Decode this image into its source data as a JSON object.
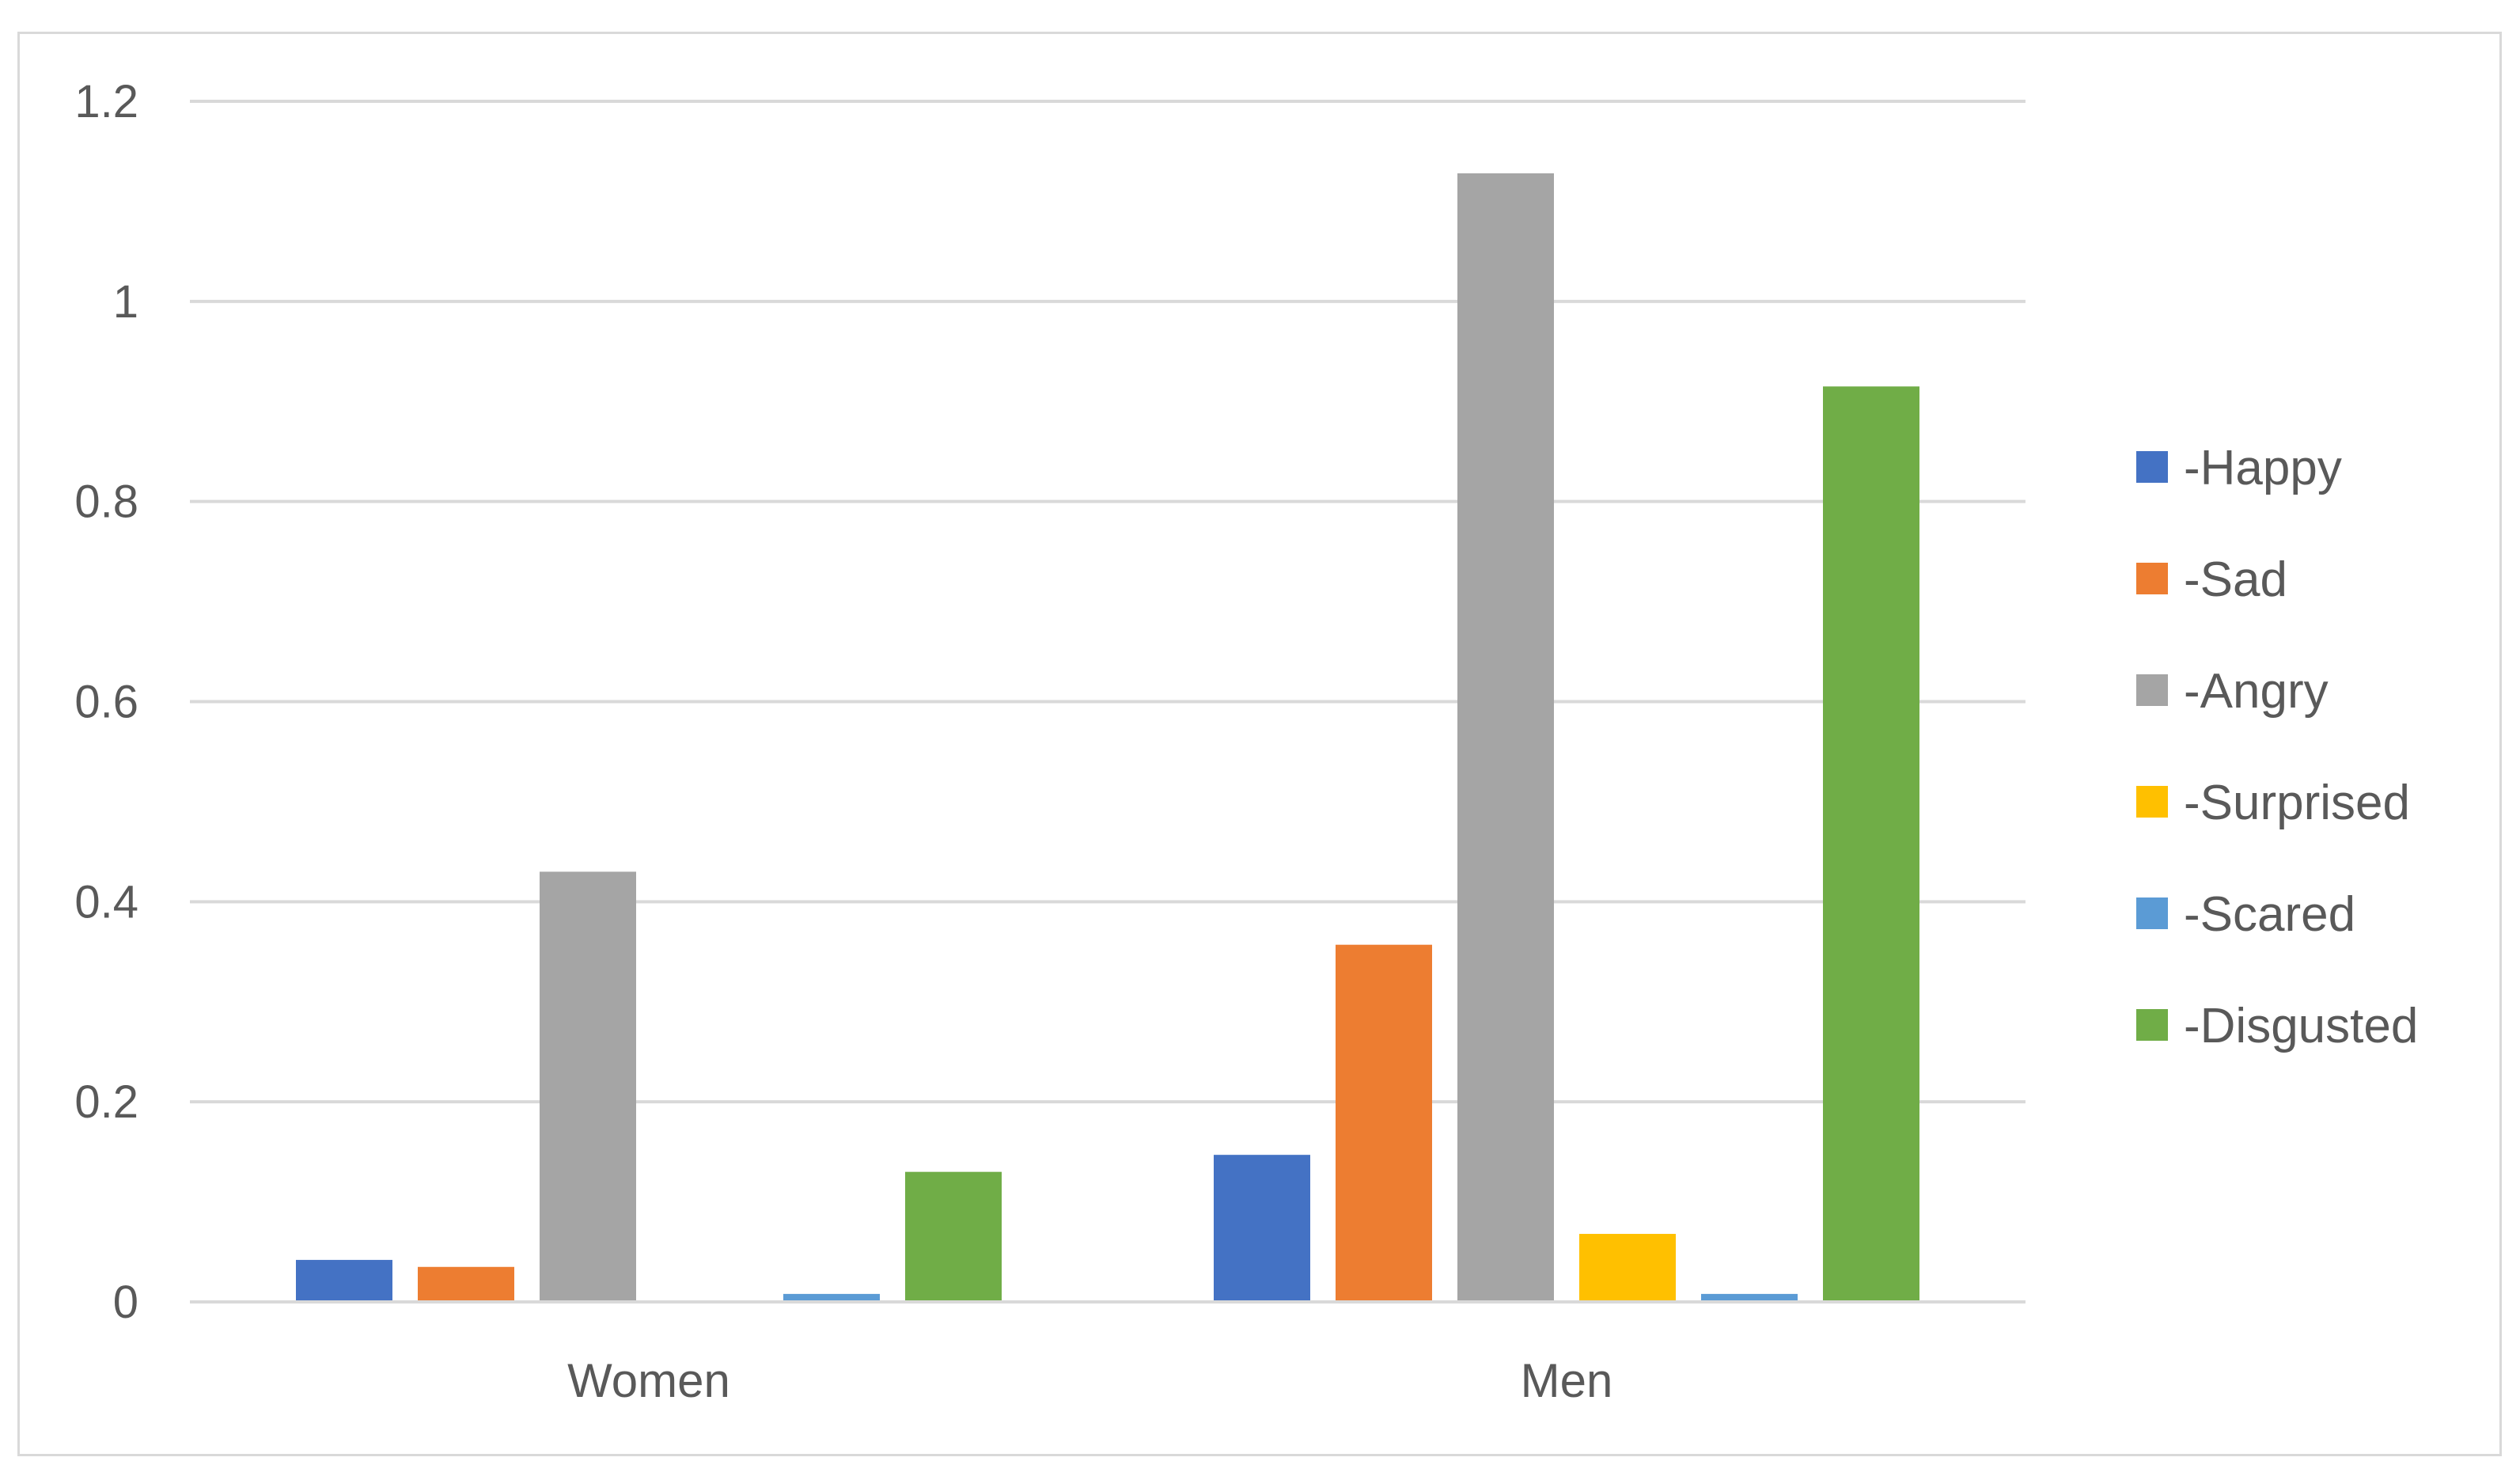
{
  "chart_data": {
    "type": "bar",
    "categories": [
      "Women",
      "Men"
    ],
    "series": [
      {
        "name": "-Happy",
        "color": "#4472C4",
        "values": [
          0.042,
          0.147
        ]
      },
      {
        "name": "-Sad",
        "color": "#ED7D31",
        "values": [
          0.035,
          0.357
        ]
      },
      {
        "name": "-Angry",
        "color": "#A5A5A5",
        "values": [
          0.43,
          1.128
        ]
      },
      {
        "name": "-Surprised",
        "color": "#FFC000",
        "values": [
          0.0,
          0.068
        ]
      },
      {
        "name": "-Scared",
        "color": "#5B9BD5",
        "values": [
          0.008,
          0.008
        ]
      },
      {
        "name": "-Disgusted",
        "color": "#70AD47",
        "values": [
          0.13,
          0.915
        ]
      }
    ],
    "yticks": [
      "0",
      "0.2",
      "0.4",
      "0.6",
      "0.8",
      "1",
      "1.2"
    ],
    "ylim": [
      0,
      1.2
    ],
    "grid": true,
    "legend": "right"
  }
}
